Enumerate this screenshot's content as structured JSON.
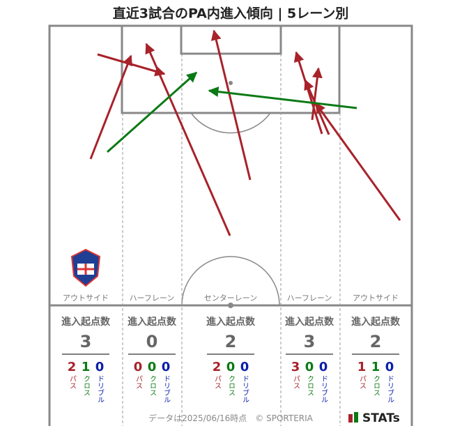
{
  "title": "直近3試合のPA内進入傾向 | 5レーン別",
  "lanes": [
    {
      "name": "アウトサイド",
      "header": "進入起点数",
      "total": 3,
      "pass": 2,
      "cross": 1,
      "dribble": 0
    },
    {
      "name": "ハーフレーン",
      "header": "進入起点数",
      "total": 0,
      "pass": 0,
      "cross": 0,
      "dribble": 0
    },
    {
      "name": "センターレーン",
      "header": "進入起点数",
      "total": 2,
      "pass": 2,
      "cross": 0,
      "dribble": 0
    },
    {
      "name": "ハーフレーン",
      "header": "進入起点数",
      "total": 3,
      "pass": 3,
      "cross": 0,
      "dribble": 0
    },
    {
      "name": "アウトサイド",
      "header": "進入起点数",
      "total": 2,
      "pass": 1,
      "cross": 1,
      "dribble": 0
    }
  ],
  "stat_labels": {
    "pass": "パス",
    "cross": "クロス",
    "dribble": "ドリブル"
  },
  "footer": "データは2025/06/16時点　© SPORTERIA",
  "brand": "STATs"
}
